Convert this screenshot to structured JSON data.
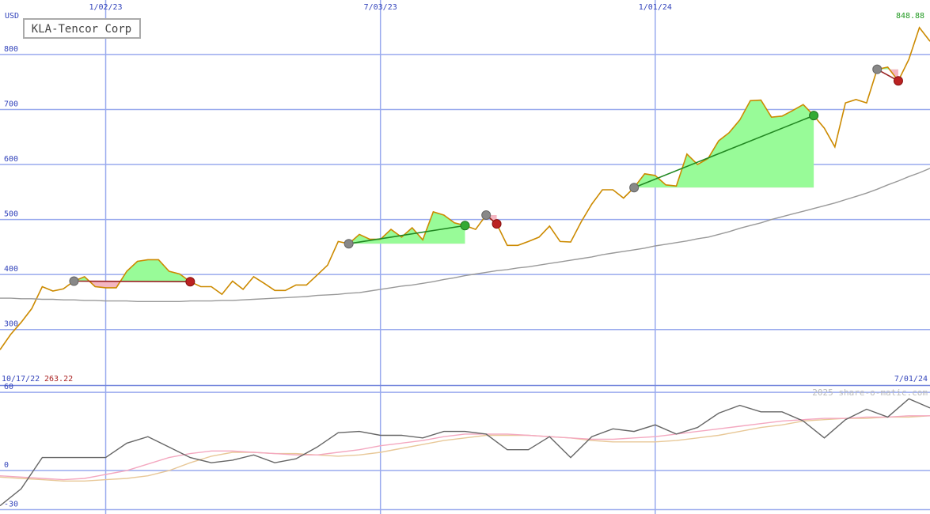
{
  "chart_data": [
    {
      "type": "line",
      "title": "KLA-Tencor Corp",
      "unit": "USD",
      "start_date": "10/17/22",
      "end_date": "7/01/24",
      "xlim": [
        0,
        88
      ],
      "xticks": [
        {
          "value": 10,
          "label": "1/02/23"
        },
        {
          "value": 36,
          "label": "7/03/23"
        },
        {
          "value": 62,
          "label": "1/01/24"
        }
      ],
      "ylim": [
        199,
        899
      ],
      "yticks": [
        300,
        400,
        500,
        600,
        700,
        800
      ],
      "grid": true,
      "series": [
        {
          "color": "#cc8a00",
          "values": [
            263.22,
            291,
            313,
            338,
            378,
            370,
            374,
            388,
            396,
            378,
            376,
            376,
            406,
            424,
            427,
            427,
            406,
            401,
            387,
            378,
            378,
            364,
            388,
            373,
            396,
            384,
            371,
            371,
            381,
            381,
            399,
            417,
            460,
            456,
            473,
            464,
            464,
            482,
            468,
            485,
            463,
            514,
            508,
            494,
            489,
            482,
            508,
            492,
            453,
            453,
            460,
            468,
            488,
            460,
            459,
            496,
            528,
            554,
            554,
            539,
            558,
            583,
            580,
            563,
            561,
            619,
            600,
            611,
            643,
            658,
            681,
            716,
            717,
            686,
            688,
            698,
            709,
            689,
            666,
            632,
            712,
            718,
            712,
            773,
            777,
            752,
            791,
            848.88,
            824
          ]
        },
        {
          "color": "#999999",
          "values": [
            357,
            357,
            356,
            356,
            355,
            355,
            354,
            354,
            353,
            353,
            352,
            352,
            352,
            351,
            351,
            351,
            351,
            351,
            352,
            352,
            352,
            353,
            353,
            354,
            355,
            356,
            357,
            358,
            359,
            360,
            362,
            363,
            364,
            366,
            367,
            370,
            373,
            376,
            379,
            381,
            384,
            387,
            391,
            394,
            398,
            401,
            404,
            407,
            409,
            412,
            414,
            417,
            420,
            423,
            426,
            429,
            432,
            436,
            439,
            442,
            445,
            448,
            452,
            455,
            458,
            461,
            465,
            468,
            473,
            478,
            484,
            489,
            494,
            500,
            505,
            510,
            515,
            520,
            525,
            530,
            536,
            542,
            548,
            555,
            563,
            570,
            578,
            585,
            593
          ]
        }
      ],
      "trades": [
        {
          "start": 7,
          "end": 18
        },
        {
          "start": 33,
          "end": 44
        },
        {
          "start": 46,
          "end": 47
        },
        {
          "start": 60,
          "end": 77
        },
        {
          "start": 83,
          "end": 85
        }
      ]
    },
    {
      "type": "line",
      "credit": "2025 share-o-matic.com",
      "xlim": [
        0,
        88
      ],
      "x": [
        0,
        2,
        4,
        6,
        8,
        10,
        12,
        14,
        16,
        18,
        20,
        22,
        24,
        26,
        28,
        30,
        32,
        34,
        36,
        38,
        40,
        42,
        44,
        46,
        48,
        50,
        52,
        54,
        56,
        58,
        60,
        62,
        64,
        66,
        68,
        70,
        72,
        74,
        76,
        78,
        80,
        82,
        84,
        86,
        88
      ],
      "ylim": [
        -33.3,
        65.5
      ],
      "yticks": [
        -30,
        0,
        60
      ],
      "series": [
        {
          "color": "#e8c898",
          "values": [
            -5,
            -6,
            -7,
            -8,
            -8,
            -7,
            -6,
            -4,
            0,
            6,
            11,
            14,
            14,
            13,
            13,
            12,
            11,
            12,
            14,
            17,
            20,
            23,
            25,
            27,
            27,
            27,
            26,
            25,
            23,
            22,
            22,
            22,
            23,
            25,
            27,
            30,
            33,
            35,
            38,
            39,
            40,
            40,
            41,
            41,
            42
          ]
        },
        {
          "color": "#f4a8c0",
          "values": [
            -4,
            -5,
            -6,
            -7,
            -6,
            -3,
            0,
            5,
            10,
            13,
            15,
            15,
            14,
            13,
            12,
            12,
            14,
            16,
            19,
            21,
            23,
            26,
            28,
            28,
            28,
            27,
            26,
            25,
            24,
            24,
            25,
            26,
            28,
            30,
            32,
            34,
            36,
            38,
            39,
            40,
            40,
            41,
            41,
            42,
            42
          ]
        },
        {
          "color": "#666666",
          "values": [
            -27,
            -14,
            10,
            10,
            10,
            10,
            21,
            26,
            18,
            10,
            6,
            8,
            12,
            6,
            9,
            18,
            29,
            30,
            27,
            27,
            25,
            30,
            30,
            28,
            16,
            16,
            26,
            10,
            26,
            32,
            30,
            35,
            28,
            33,
            44,
            50,
            45,
            45,
            38,
            25,
            39,
            47,
            41,
            55,
            48
          ]
        }
      ]
    }
  ]
}
